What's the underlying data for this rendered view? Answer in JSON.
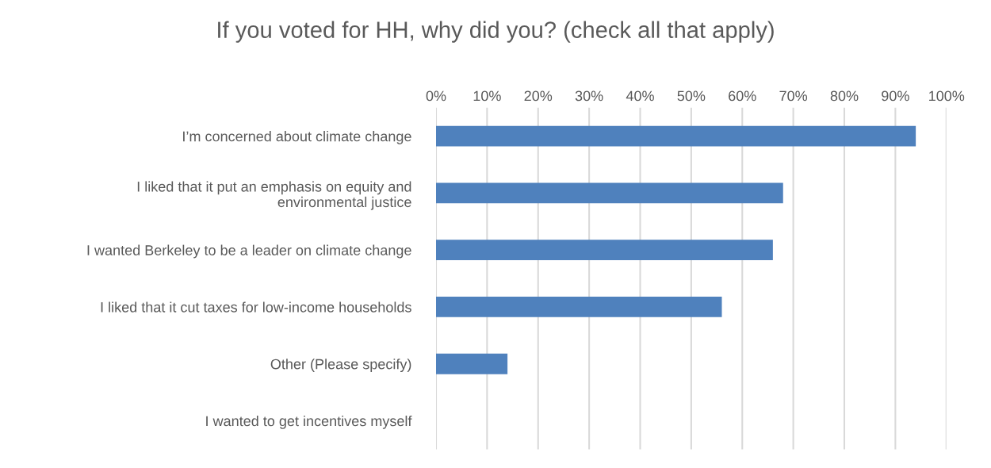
{
  "chart_data": {
    "type": "bar",
    "orientation": "horizontal",
    "title": "If you voted for HH, why did you? (check all that apply)",
    "categories": [
      "I’m concerned about climate change",
      "I liked that it put an emphasis on equity and environmental justice",
      "I wanted Berkeley to be a leader on climate change",
      "I liked that it cut taxes for low-income households",
      "Other (Please specify)",
      "I wanted to get incentives myself"
    ],
    "values": [
      94,
      68,
      66,
      56,
      14,
      0
    ],
    "color": "#4f81bd",
    "xlim": [
      0,
      100
    ],
    "xticks": [
      {
        "value": 0,
        "label": "0%"
      },
      {
        "value": 10,
        "label": "10%"
      },
      {
        "value": 20,
        "label": "20%"
      },
      {
        "value": 30,
        "label": "30%"
      },
      {
        "value": 40,
        "label": "40%"
      },
      {
        "value": 50,
        "label": "50%"
      },
      {
        "value": 60,
        "label": "60%"
      },
      {
        "value": 70,
        "label": "70%"
      },
      {
        "value": 80,
        "label": "80%"
      },
      {
        "value": 90,
        "label": "90%"
      },
      {
        "value": 100,
        "label": "100%"
      }
    ],
    "grid": "x",
    "legend": false
  }
}
